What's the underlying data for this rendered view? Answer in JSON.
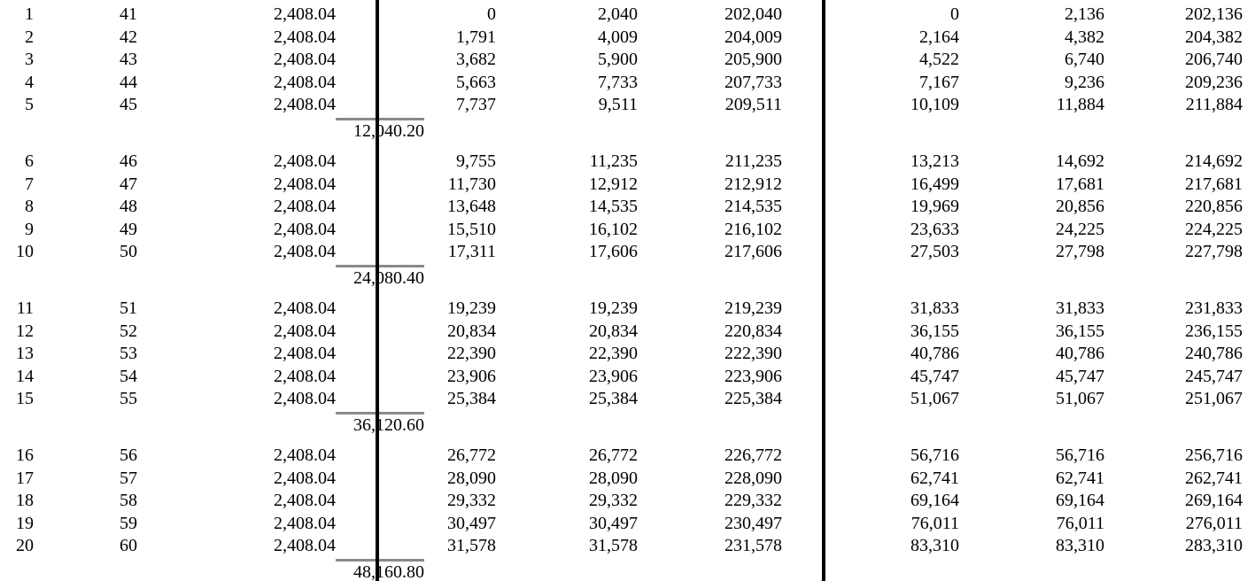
{
  "page": {
    "background_color": "#ffffff",
    "text_color": "#000000",
    "section_divider_color": "#000000",
    "subtotal_rule_color": "#8a8a8a"
  },
  "table": {
    "columns": [
      "policy_year",
      "age",
      "annual_premium",
      "section2_value1",
      "section2_value2",
      "section2_value3",
      "section3_value1",
      "section3_value2",
      "section3_value3"
    ],
    "groups": [
      {
        "rows": [
          [
            "1",
            "41",
            "2,408.04",
            "0",
            "2,040",
            "202,040",
            "0",
            "2,136",
            "202,136"
          ],
          [
            "2",
            "42",
            "2,408.04",
            "1,791",
            "4,009",
            "204,009",
            "2,164",
            "4,382",
            "204,382"
          ],
          [
            "3",
            "43",
            "2,408.04",
            "3,682",
            "5,900",
            "205,900",
            "4,522",
            "6,740",
            "206,740"
          ],
          [
            "4",
            "44",
            "2,408.04",
            "5,663",
            "7,733",
            "207,733",
            "7,167",
            "9,236",
            "209,236"
          ],
          [
            "5",
            "45",
            "2,408.04",
            "7,737",
            "9,511",
            "209,511",
            "10,109",
            "11,884",
            "211,884"
          ]
        ],
        "premium_subtotal": "12,040.20"
      },
      {
        "rows": [
          [
            "6",
            "46",
            "2,408.04",
            "9,755",
            "11,235",
            "211,235",
            "13,213",
            "14,692",
            "214,692"
          ],
          [
            "7",
            "47",
            "2,408.04",
            "11,730",
            "12,912",
            "212,912",
            "16,499",
            "17,681",
            "217,681"
          ],
          [
            "8",
            "48",
            "2,408.04",
            "13,648",
            "14,535",
            "214,535",
            "19,969",
            "20,856",
            "220,856"
          ],
          [
            "9",
            "49",
            "2,408.04",
            "15,510",
            "16,102",
            "216,102",
            "23,633",
            "24,225",
            "224,225"
          ],
          [
            "10",
            "50",
            "2,408.04",
            "17,311",
            "17,606",
            "217,606",
            "27,503",
            "27,798",
            "227,798"
          ]
        ],
        "premium_subtotal": "24,080.40"
      },
      {
        "rows": [
          [
            "11",
            "51",
            "2,408.04",
            "19,239",
            "19,239",
            "219,239",
            "31,833",
            "31,833",
            "231,833"
          ],
          [
            "12",
            "52",
            "2,408.04",
            "20,834",
            "20,834",
            "220,834",
            "36,155",
            "36,155",
            "236,155"
          ],
          [
            "13",
            "53",
            "2,408.04",
            "22,390",
            "22,390",
            "222,390",
            "40,786",
            "40,786",
            "240,786"
          ],
          [
            "14",
            "54",
            "2,408.04",
            "23,906",
            "23,906",
            "223,906",
            "45,747",
            "45,747",
            "245,747"
          ],
          [
            "15",
            "55",
            "2,408.04",
            "25,384",
            "25,384",
            "225,384",
            "51,067",
            "51,067",
            "251,067"
          ]
        ],
        "premium_subtotal": "36,120.60"
      },
      {
        "rows": [
          [
            "16",
            "56",
            "2,408.04",
            "26,772",
            "26,772",
            "226,772",
            "56,716",
            "56,716",
            "256,716"
          ],
          [
            "17",
            "57",
            "2,408.04",
            "28,090",
            "28,090",
            "228,090",
            "62,741",
            "62,741",
            "262,741"
          ],
          [
            "18",
            "58",
            "2,408.04",
            "29,332",
            "29,332",
            "229,332",
            "69,164",
            "69,164",
            "269,164"
          ],
          [
            "19",
            "59",
            "2,408.04",
            "30,497",
            "30,497",
            "230,497",
            "76,011",
            "76,011",
            "276,011"
          ],
          [
            "20",
            "60",
            "2,408.04",
            "31,578",
            "31,578",
            "231,578",
            "83,310",
            "83,310",
            "283,310"
          ]
        ],
        "premium_subtotal": "48,160.80"
      }
    ]
  }
}
